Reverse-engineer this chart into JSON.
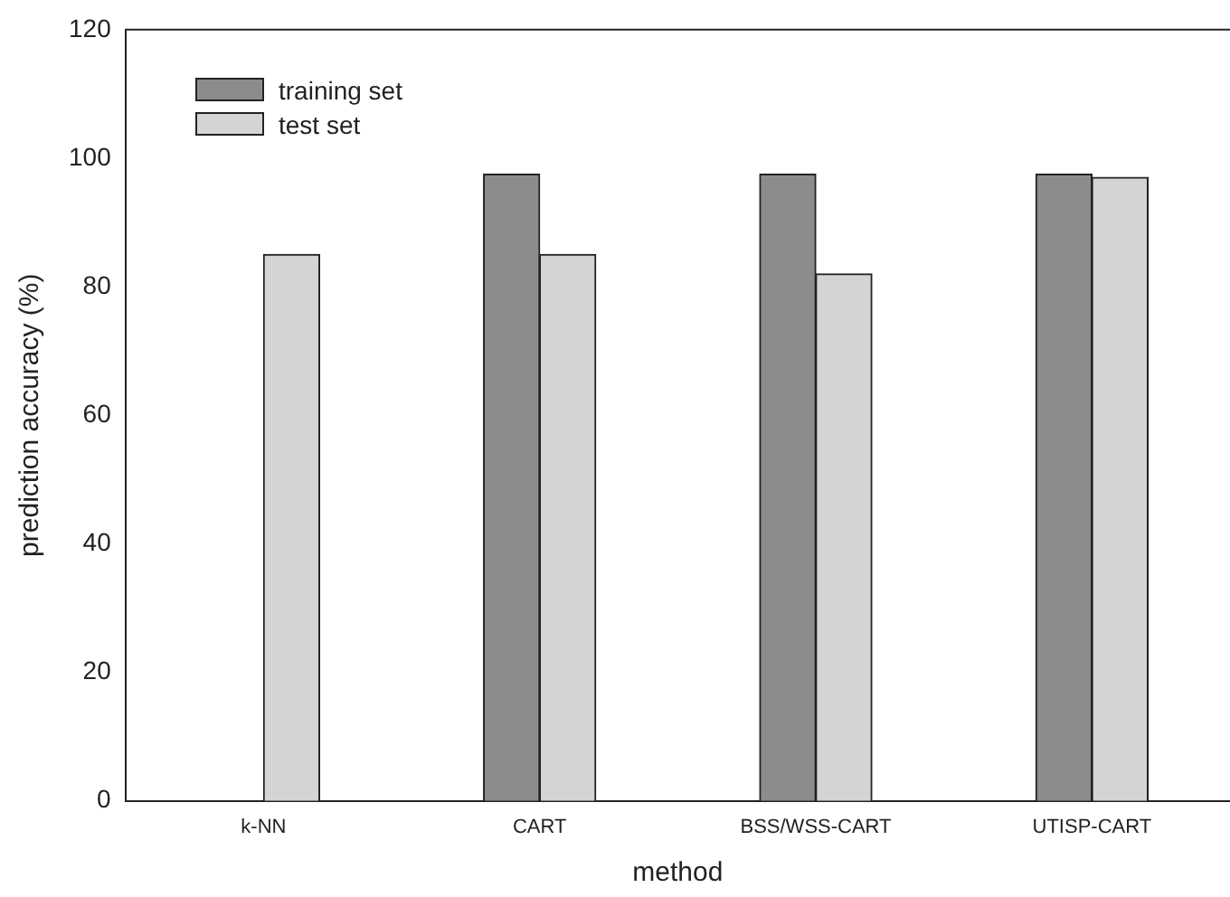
{
  "chart_data": {
    "type": "bar",
    "xlabel": "method",
    "ylabel": "prediction accuracy (%)",
    "categories": [
      "k-NN",
      "CART",
      "BSS/WSS-CART",
      "UTISP-CART"
    ],
    "series": [
      {
        "name": "training set",
        "color": "#8c8c8c",
        "values": [
          null,
          97.5,
          97.5,
          97.5
        ]
      },
      {
        "name": "test set",
        "color": "#d4d4d4",
        "values": [
          85,
          85,
          82,
          97
        ]
      }
    ],
    "ylim": [
      0,
      120
    ],
    "yticks": [
      0,
      20,
      40,
      60,
      80,
      100,
      120
    ],
    "grid": false,
    "legend": "top left"
  }
}
